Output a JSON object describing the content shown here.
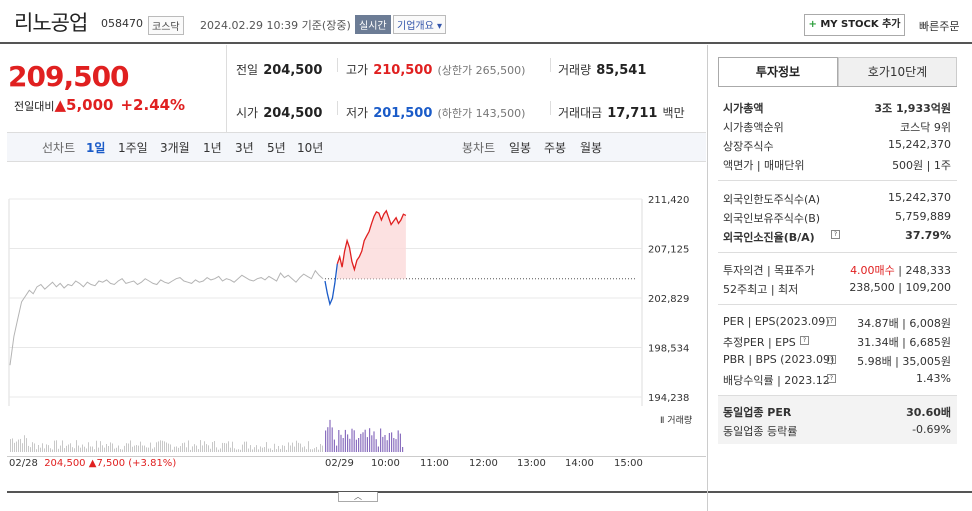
{
  "header": {
    "name": "리노공업",
    "code": "058470",
    "market": "코스닥",
    "timestamp": "2024.02.29 10:39 기준(장중)",
    "realtime": "실시간",
    "company_info": "기업개요",
    "mystock": "MY STOCK 추가",
    "quick_order": "빠른주문"
  },
  "price": {
    "current": "209,500",
    "change_label": "전일대비",
    "change_amount": "5,000",
    "change_pct": "+2.44%"
  },
  "quote": {
    "prev_close_label": "전일",
    "prev_close": "204,500",
    "high_label": "고가",
    "high": "210,500",
    "upper_limit": "(상한가 265,500)",
    "volume_label": "거래량",
    "volume": "85,541",
    "open_label": "시가",
    "open": "204,500",
    "low_label": "저가",
    "low": "201,500",
    "lower_limit": "(하한가 143,500)",
    "amount_label": "거래대금",
    "amount": "17,711",
    "amount_unit": "백만"
  },
  "period": {
    "line_label": "선차트",
    "line_items": [
      "1일",
      "1주일",
      "3개월",
      "1년",
      "3년",
      "5년",
      "10년"
    ],
    "active": "1일",
    "candle_label": "봉차트",
    "candle_items": [
      "일봉",
      "주봉",
      "월봉"
    ]
  },
  "chart_data": {
    "type": "line",
    "y_ticks": [
      "211,420",
      "207,125",
      "202,829",
      "198,534",
      "194,238"
    ],
    "ylim": [
      194238,
      211420
    ],
    "prev_close": 204500,
    "volume_label": "거래량",
    "x_ticks": [
      "02/28",
      "02/29",
      "10:00",
      "11:00",
      "12:00",
      "13:00",
      "14:00",
      "15:00"
    ],
    "prev_day_summary": {
      "close": "204,500",
      "change": "7,500",
      "pct": "(+3.81%)"
    },
    "prev_day": [
      197000,
      199500,
      201000,
      202500,
      203000,
      203500,
      203200,
      203800,
      204000,
      203600,
      203900,
      204200,
      203800,
      204100,
      203700,
      204000,
      203900,
      204300,
      204100,
      203800,
      204200,
      204000,
      203900,
      204300,
      204200,
      204400,
      204100,
      204000,
      204300,
      204500,
      204100,
      204200,
      204300,
      204000,
      204200,
      204500,
      204300,
      204100,
      204000,
      204400,
      204200,
      204100,
      204300,
      204500,
      204600,
      204300,
      204200,
      204100,
      204400,
      204200,
      204300,
      204600,
      204400,
      204500,
      204700,
      204300,
      204500,
      204400,
      204200,
      204500,
      204800,
      204600,
      204400,
      204300,
      204500,
      204600,
      204400,
      204700,
      204500,
      204300,
      205000,
      204600,
      204800,
      204500,
      204200,
      204600,
      204900,
      204700,
      204500,
      205200,
      204800,
      204500
    ],
    "today": [
      204300,
      203200,
      202300,
      202800,
      204100,
      205800,
      206400,
      205500,
      206900,
      207800,
      207200,
      206000,
      205300,
      206100,
      206400,
      206900,
      207800,
      208200,
      208600,
      209300,
      209900,
      210300,
      210200,
      209600,
      210100,
      210400,
      209800,
      209200,
      209500,
      209800,
      209300,
      209600,
      210100,
      210000
    ]
  },
  "invest": {
    "tab1": "투자정보",
    "tab2": "호가10단계",
    "rows1": [
      {
        "label": "시가총액",
        "value": "3조 1,933억원"
      },
      {
        "label": "시가총액순위",
        "value": "코스닥 9위"
      },
      {
        "label": "상장주식수",
        "value": "15,242,370"
      },
      {
        "label": "액면가 | 매매단위",
        "value": "500원 | 1주"
      }
    ],
    "rows2": [
      {
        "label": "외국인한도주식수(A)",
        "value": "15,242,370"
      },
      {
        "label": "외국인보유주식수(B)",
        "value": "5,759,889"
      },
      {
        "label": "외국인소진율(B/A)",
        "value": "37.79%"
      }
    ],
    "opinion_label": "투자의견 | 목표주가",
    "opinion": "4.00매수",
    "target": "248,333",
    "w52_label": "52주최고 | 최저",
    "w52": "238,500 | 109,200",
    "rows3": [
      {
        "label": "PER | EPS(2023.09)",
        "value": "34.87배 | 6,008원"
      },
      {
        "label": "추정PER | EPS",
        "value": "31.34배 | 6,685원"
      },
      {
        "label": "PBR | BPS (2023.09)",
        "value": "5.98배 | 35,005원"
      },
      {
        "label": "배당수익률 | 2023.12",
        "value": "1.43%"
      }
    ],
    "sector_per_label": "동일업종 PER",
    "sector_per": "30.60배",
    "sector_chg_label": "동일업종 등락률",
    "sector_chg": "-0.69%"
  },
  "colors": {
    "up": "#e02020",
    "down": "#1a5bc8",
    "line": "#b4b4b4",
    "volume_today": "#8a6fbf"
  }
}
